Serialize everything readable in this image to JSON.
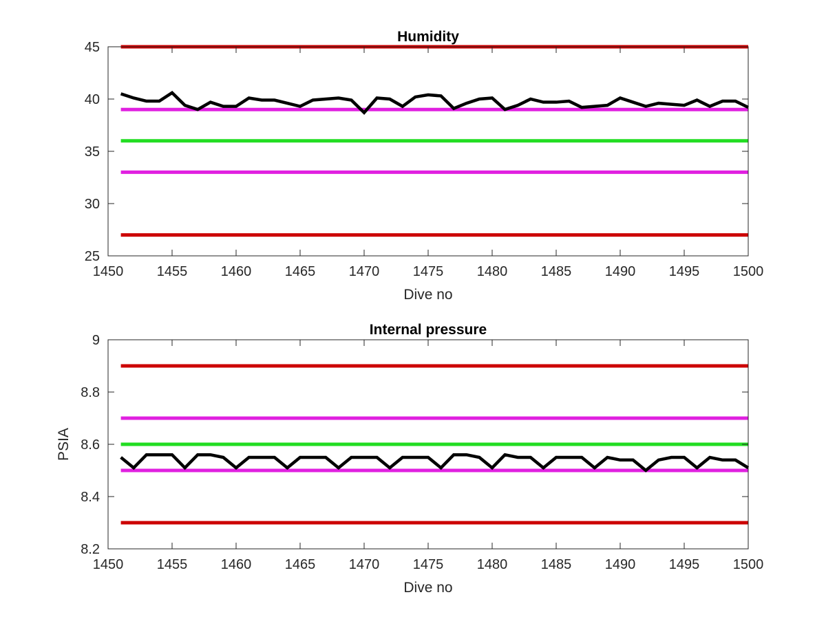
{
  "chart_data": [
    {
      "type": "line",
      "title": "Humidity",
      "xlabel": "Dive no",
      "ylabel": "",
      "xlim": [
        1450,
        1500
      ],
      "ylim": [
        25,
        45
      ],
      "xticks": [
        1450,
        1455,
        1460,
        1465,
        1470,
        1475,
        1480,
        1485,
        1490,
        1495,
        1500
      ],
      "yticks": [
        25,
        30,
        35,
        40,
        45
      ],
      "grid": false,
      "reference_lines": [
        {
          "y": 45,
          "color": "#cc0000"
        },
        {
          "y": 39,
          "color": "#e020e0"
        },
        {
          "y": 36,
          "color": "#22dd22"
        },
        {
          "y": 33,
          "color": "#e020e0"
        },
        {
          "y": 27,
          "color": "#cc0000"
        }
      ],
      "series": [
        {
          "color": "#000000",
          "x": [
            1451,
            1452,
            1453,
            1454,
            1455,
            1456,
            1457,
            1458,
            1459,
            1460,
            1461,
            1462,
            1463,
            1464,
            1465,
            1466,
            1467,
            1468,
            1469,
            1470,
            1471,
            1472,
            1473,
            1474,
            1475,
            1476,
            1477,
            1478,
            1479,
            1480,
            1481,
            1482,
            1483,
            1484,
            1485,
            1486,
            1487,
            1488,
            1489,
            1490,
            1491,
            1492,
            1493,
            1494,
            1495,
            1496,
            1497,
            1498,
            1499,
            1500
          ],
          "values": [
            40.5,
            40.1,
            39.8,
            39.8,
            40.6,
            39.4,
            39.0,
            39.7,
            39.3,
            39.3,
            40.1,
            39.9,
            39.9,
            39.6,
            39.3,
            39.9,
            40.0,
            40.1,
            39.9,
            38.7,
            40.1,
            40.0,
            39.3,
            40.2,
            40.4,
            40.3,
            39.1,
            39.6,
            40.0,
            40.1,
            39.0,
            39.4,
            40.0,
            39.7,
            39.7,
            39.8,
            39.2,
            39.3,
            39.4,
            40.1,
            39.7,
            39.3,
            39.6,
            39.5,
            39.4,
            39.9,
            39.3,
            39.8,
            39.8,
            39.2
          ]
        }
      ]
    },
    {
      "type": "line",
      "title": "Internal pressure",
      "xlabel": "Dive no",
      "ylabel": "PSIA",
      "xlim": [
        1450,
        1500
      ],
      "ylim": [
        8.2,
        9.0
      ],
      "xticks": [
        1450,
        1455,
        1460,
        1465,
        1470,
        1475,
        1480,
        1485,
        1490,
        1495,
        1500
      ],
      "yticks": [
        8.2,
        8.4,
        8.6,
        8.8,
        9.0
      ],
      "ytick_labels": [
        "8.2",
        "8.4",
        "8.6",
        "8.8",
        "9"
      ],
      "grid": false,
      "reference_lines": [
        {
          "y": 8.9,
          "color": "#cc0000"
        },
        {
          "y": 8.7,
          "color": "#e020e0"
        },
        {
          "y": 8.6,
          "color": "#22dd22"
        },
        {
          "y": 8.5,
          "color": "#e020e0"
        },
        {
          "y": 8.3,
          "color": "#cc0000"
        }
      ],
      "series": [
        {
          "color": "#000000",
          "x": [
            1451,
            1452,
            1453,
            1454,
            1455,
            1456,
            1457,
            1458,
            1459,
            1460,
            1461,
            1462,
            1463,
            1464,
            1465,
            1466,
            1467,
            1468,
            1469,
            1470,
            1471,
            1472,
            1473,
            1474,
            1475,
            1476,
            1477,
            1478,
            1479,
            1480,
            1481,
            1482,
            1483,
            1484,
            1485,
            1486,
            1487,
            1488,
            1489,
            1490,
            1491,
            1492,
            1493,
            1494,
            1495,
            1496,
            1497,
            1498,
            1499,
            1500
          ],
          "values": [
            8.55,
            8.51,
            8.56,
            8.56,
            8.56,
            8.51,
            8.56,
            8.56,
            8.55,
            8.51,
            8.55,
            8.55,
            8.55,
            8.51,
            8.55,
            8.55,
            8.55,
            8.51,
            8.55,
            8.55,
            8.55,
            8.51,
            8.55,
            8.55,
            8.55,
            8.51,
            8.56,
            8.56,
            8.55,
            8.51,
            8.56,
            8.55,
            8.55,
            8.51,
            8.55,
            8.55,
            8.55,
            8.51,
            8.55,
            8.54,
            8.54,
            8.5,
            8.54,
            8.55,
            8.55,
            8.51,
            8.55,
            8.54,
            8.54,
            8.51
          ]
        }
      ]
    }
  ]
}
